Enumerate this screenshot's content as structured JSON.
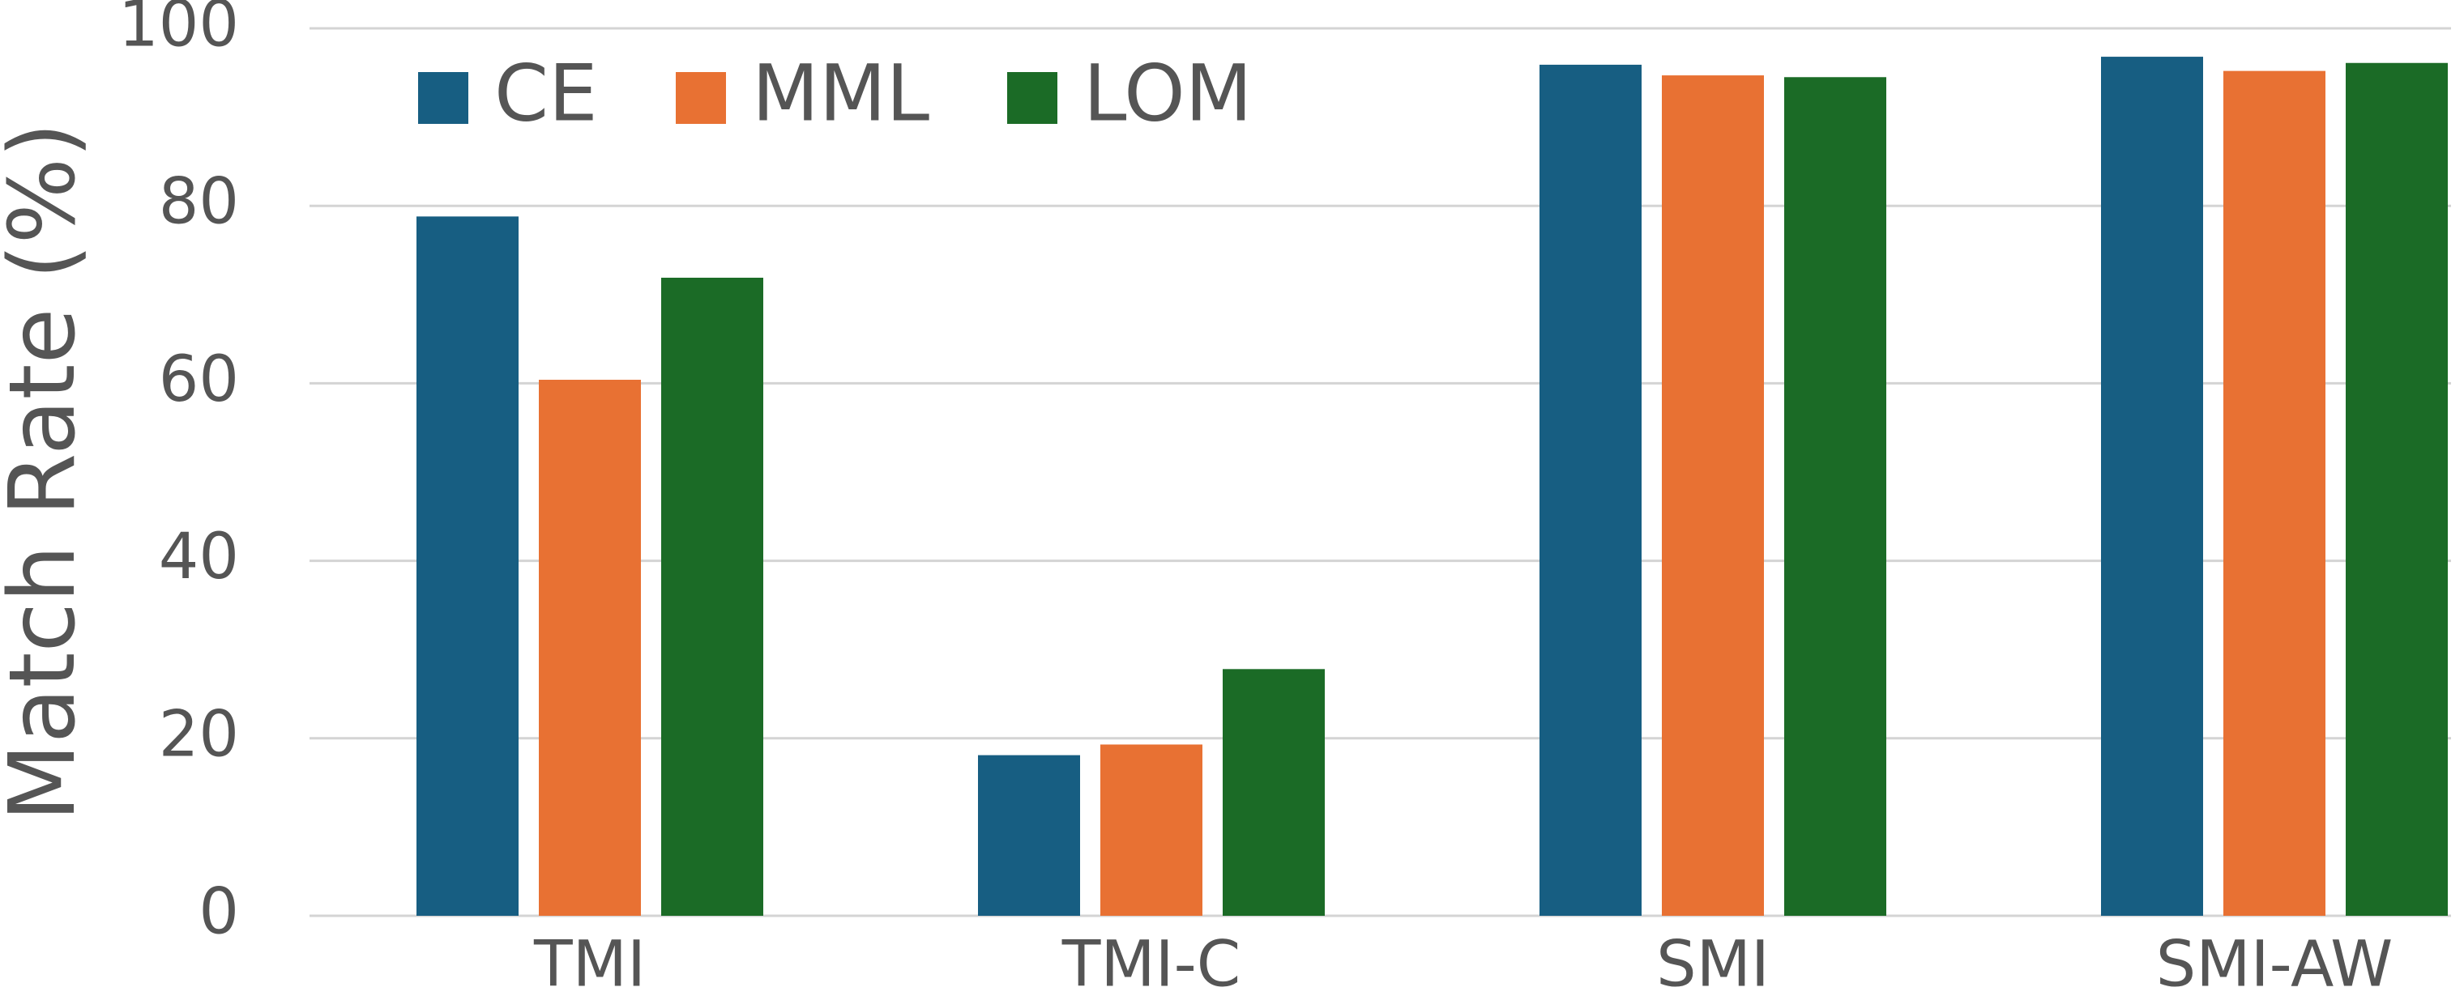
{
  "chart_data": {
    "type": "bar",
    "y_label": "Match Rate (%)",
    "categories": [
      "TMI",
      "TMI-C",
      "SMI",
      "SMI-AW"
    ],
    "series": [
      {
        "name": "CE",
        "color": "#175e82",
        "values": [
          78.8,
          18.1,
          95.9,
          96.8
        ]
      },
      {
        "name": "MML",
        "color": "#e87133",
        "values": [
          60.4,
          19.3,
          94.7,
          95.2
        ]
      },
      {
        "name": "LOM",
        "color": "#1b6b26",
        "values": [
          71.9,
          27.8,
          94.5,
          96.1
        ]
      }
    ],
    "ylim": [
      0,
      100
    ],
    "yticks": [
      0,
      20,
      40,
      60,
      80,
      100
    ],
    "grid": true,
    "legend": "top-left"
  }
}
